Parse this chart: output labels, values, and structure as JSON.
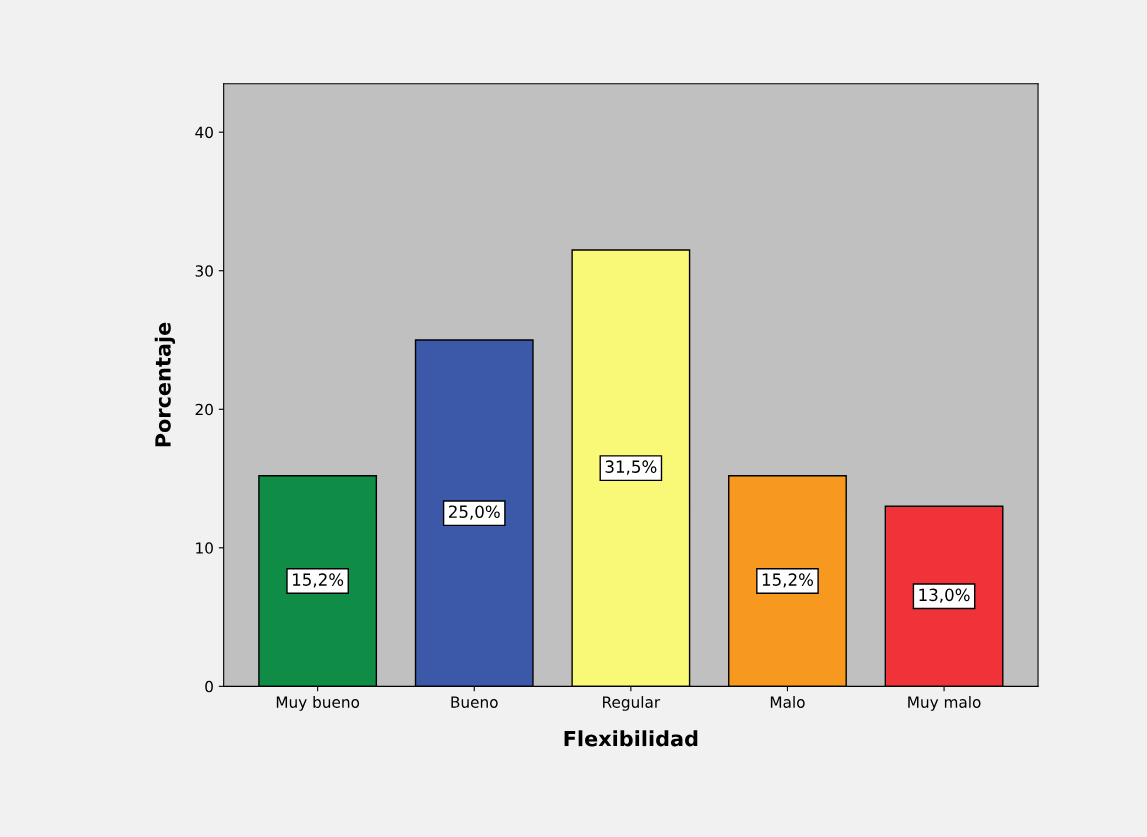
{
  "chart_data": {
    "type": "bar",
    "xlabel": "Flexibilidad",
    "ylabel": "Porcentaje",
    "categories": [
      "Muy bueno",
      "Bueno",
      "Regular",
      "Malo",
      "Muy malo"
    ],
    "values": [
      15.2,
      25.0,
      31.5,
      15.2,
      13.0
    ],
    "colors": [
      "#0f8c45",
      "#3c58a8",
      "#faf877",
      "#f7991f",
      "#ef3338"
    ],
    "value_labels": [
      "15,2%",
      "25,0%",
      "31,5%",
      "15,2%",
      "13,0%"
    ],
    "ylim": [
      0,
      43.5
    ],
    "yticks": [
      0,
      10,
      20,
      30,
      40
    ],
    "grid": false,
    "legend": false
  }
}
